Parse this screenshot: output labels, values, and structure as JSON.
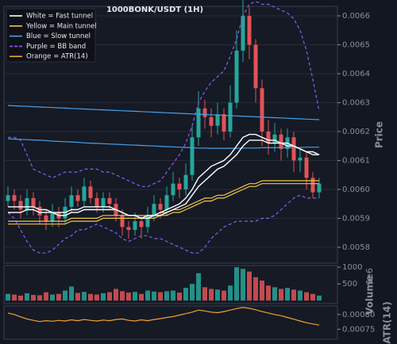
{
  "chart_data": [
    {
      "type": "candlestick",
      "title": "1000BONK/USDT (1H)",
      "ylabel": "Price",
      "up_color": "#26a69a",
      "down_color": "#e05358",
      "grid": true,
      "ylim": [
        0.005745,
        0.006633
      ],
      "yticks": [
        0.0058,
        0.0059,
        {
          "value": 0.006,
          "label": "0.0060"
        },
        0.0061,
        0.0062,
        0.0063,
        0.0064,
        0.0065,
        0.0066
      ],
      "open": [
        0.00596,
        0.00598,
        0.00596,
        0.00593,
        0.00597,
        0.00594,
        0.00591,
        0.00589,
        0.00592,
        0.0059,
        0.00594,
        0.00598,
        0.00596,
        0.00601,
        0.00597,
        0.00594,
        0.00597,
        0.00595,
        0.00591,
        0.00587,
        0.00586,
        0.00589,
        0.00587,
        0.00591,
        0.00595,
        0.00593,
        0.00598,
        0.00602,
        0.006,
        0.00605,
        0.00618,
        0.00628,
        0.00625,
        0.00622,
        0.00626,
        0.0062,
        0.0063,
        0.00648,
        0.0066,
        0.0065,
        0.00635,
        0.0062,
        0.00616,
        0.00619,
        0.00614,
        0.00618,
        0.0061,
        0.00611,
        0.00604,
        0.00599
      ],
      "high": [
        0.00601,
        0.006,
        0.00598,
        0.006,
        0.00599,
        0.00596,
        0.00593,
        0.00595,
        0.00594,
        0.00597,
        0.00601,
        0.006,
        0.00604,
        0.00603,
        0.00599,
        0.00599,
        0.00599,
        0.00597,
        0.00593,
        0.00589,
        0.00592,
        0.00591,
        0.00594,
        0.00598,
        0.00597,
        0.00601,
        0.00606,
        0.00604,
        0.00609,
        0.00622,
        0.00634,
        0.00631,
        0.00628,
        0.0063,
        0.00628,
        0.00636,
        0.00655,
        0.00666,
        0.00663,
        0.00652,
        0.00638,
        0.00624,
        0.00623,
        0.00621,
        0.00621,
        0.0062,
        0.00614,
        0.00613,
        0.00606,
        0.00604
      ],
      "low": [
        0.00594,
        0.00593,
        0.0059,
        0.00591,
        0.00591,
        0.00588,
        0.00586,
        0.00587,
        0.00587,
        0.00588,
        0.00592,
        0.00594,
        0.00594,
        0.00595,
        0.00592,
        0.00592,
        0.00593,
        0.00589,
        0.00584,
        0.00583,
        0.00584,
        0.00583,
        0.00585,
        0.00589,
        0.0059,
        0.00591,
        0.00596,
        0.00597,
        0.00598,
        0.00603,
        0.00615,
        0.00621,
        0.00618,
        0.00619,
        0.00617,
        0.00618,
        0.00628,
        0.00644,
        0.00645,
        0.0063,
        0.00615,
        0.00612,
        0.00613,
        0.0061,
        0.00611,
        0.00606,
        0.00606,
        0.006,
        0.00597,
        0.00597
      ],
      "close": [
        0.00598,
        0.00596,
        0.00593,
        0.00597,
        0.00594,
        0.00591,
        0.00589,
        0.00592,
        0.0059,
        0.00594,
        0.00598,
        0.00596,
        0.00601,
        0.00597,
        0.00594,
        0.00597,
        0.00595,
        0.00591,
        0.00587,
        0.00586,
        0.00589,
        0.00587,
        0.00591,
        0.00595,
        0.00593,
        0.00598,
        0.00602,
        0.006,
        0.00605,
        0.00618,
        0.00628,
        0.00625,
        0.00622,
        0.00626,
        0.0062,
        0.0063,
        0.00648,
        0.0066,
        0.0065,
        0.00635,
        0.0062,
        0.00616,
        0.00619,
        0.00614,
        0.00618,
        0.0061,
        0.00611,
        0.00604,
        0.00599,
        0.00602
      ],
      "lines": [
        {
          "color": "#4a9fe8",
          "dashed": false,
          "values": [
            0.00629,
            0.006289,
            0.006288,
            0.006287,
            0.006286,
            0.006285,
            0.006284,
            0.006283,
            0.006282,
            0.006281,
            0.00628,
            0.006279,
            0.006278,
            0.006277,
            0.006276,
            0.006275,
            0.006274,
            0.006273,
            0.006272,
            0.006271,
            0.00627,
            0.006269,
            0.006268,
            0.006267,
            0.006266,
            0.006265,
            0.006264,
            0.006263,
            0.006262,
            0.006261,
            0.00626,
            0.006259,
            0.006258,
            0.006257,
            0.006256,
            0.006255,
            0.006254,
            0.006253,
            0.006252,
            0.006251,
            0.00625,
            0.006249,
            0.006248,
            0.006247,
            0.006246,
            0.006245,
            0.006244,
            0.006243,
            0.006242,
            0.006241
          ]
        },
        {
          "color": "#4a9fe8",
          "dashed": false,
          "values": [
            0.006175,
            0.006174,
            0.006173,
            0.006172,
            0.006171,
            0.00617,
            0.006169,
            0.006167,
            0.006166,
            0.006165,
            0.006164,
            0.006163,
            0.006161,
            0.00616,
            0.006159,
            0.006158,
            0.006157,
            0.006156,
            0.006155,
            0.006154,
            0.006153,
            0.006152,
            0.006151,
            0.00615,
            0.006149,
            0.006148,
            0.006147,
            0.006146,
            0.006145,
            0.006144,
            0.006143,
            0.006143,
            0.006142,
            0.006142,
            0.006142,
            0.006142,
            0.006142,
            0.006143,
            0.006143,
            0.006143,
            0.006144,
            0.006144,
            0.006144,
            0.006145,
            0.006145,
            0.006145,
            0.006145,
            0.006146,
            0.006146,
            0.006146
          ]
        },
        {
          "color": "#8a5cf0",
          "dashed": true,
          "values": [
            0.00618,
            0.00618,
            0.00617,
            0.00612,
            0.00607,
            0.00606,
            0.00605,
            0.00604,
            0.00605,
            0.00606,
            0.00606,
            0.00606,
            0.00607,
            0.00607,
            0.00607,
            0.00606,
            0.00606,
            0.00605,
            0.00604,
            0.00603,
            0.00602,
            0.00601,
            0.00601,
            0.00602,
            0.00603,
            0.00606,
            0.00609,
            0.00612,
            0.00616,
            0.00622,
            0.0063,
            0.00634,
            0.00637,
            0.00639,
            0.00641,
            0.00646,
            0.00652,
            0.0066,
            0.00664,
            0.00665,
            0.00664,
            0.00664,
            0.00663,
            0.00662,
            0.00661,
            0.00659,
            0.00655,
            0.00648,
            0.00638,
            0.00627
          ]
        },
        {
          "color": "#8a5cf0",
          "dashed": true,
          "values": [
            0.00592,
            0.0059,
            0.00586,
            0.00582,
            0.00579,
            0.00578,
            0.00578,
            0.00579,
            0.00581,
            0.00583,
            0.00584,
            0.00586,
            0.00586,
            0.00587,
            0.00588,
            0.00587,
            0.00586,
            0.00585,
            0.00583,
            0.00582,
            0.00583,
            0.00584,
            0.00584,
            0.00583,
            0.00583,
            0.00582,
            0.00581,
            0.0058,
            0.00579,
            0.00578,
            0.00578,
            0.0058,
            0.00583,
            0.00585,
            0.00587,
            0.00588,
            0.00589,
            0.00589,
            0.00589,
            0.00589,
            0.0059,
            0.0059,
            0.00591,
            0.00593,
            0.00595,
            0.00597,
            0.00598,
            0.00597,
            0.00597,
            0.00597
          ]
        },
        {
          "color": "#f5c542",
          "dashed": false,
          "values": [
            0.00589,
            0.00589,
            0.00589,
            0.00589,
            0.00589,
            0.00589,
            0.00589,
            0.00589,
            0.00589,
            0.00589,
            0.0059,
            0.0059,
            0.0059,
            0.0059,
            0.0059,
            0.00591,
            0.00591,
            0.00591,
            0.00591,
            0.00591,
            0.00591,
            0.00591,
            0.00591,
            0.00591,
            0.00592,
            0.00592,
            0.00593,
            0.00593,
            0.00594,
            0.00595,
            0.00596,
            0.00597,
            0.00597,
            0.00598,
            0.00598,
            0.00599,
            0.006,
            0.00601,
            0.00602,
            0.00602,
            0.00603,
            0.00603,
            0.00603,
            0.00603,
            0.00603,
            0.00603,
            0.00603,
            0.00603,
            0.00603,
            0.00603
          ]
        },
        {
          "color": "#f5c542",
          "dashed": false,
          "values": [
            0.00588,
            0.00588,
            0.00588,
            0.00588,
            0.00588,
            0.00588,
            0.00588,
            0.00588,
            0.00588,
            0.00588,
            0.00589,
            0.00589,
            0.00589,
            0.00589,
            0.00589,
            0.0059,
            0.0059,
            0.0059,
            0.0059,
            0.0059,
            0.0059,
            0.0059,
            0.0059,
            0.0059,
            0.00591,
            0.00591,
            0.00592,
            0.00592,
            0.00593,
            0.00594,
            0.00595,
            0.00596,
            0.00596,
            0.00597,
            0.00597,
            0.00598,
            0.00599,
            0.006,
            0.00601,
            0.00601,
            0.00602,
            0.00602,
            0.00602,
            0.00602,
            0.00602,
            0.00602,
            0.00602,
            0.00602,
            0.00602,
            0.00602
          ]
        },
        {
          "color": "#ffffff",
          "dashed": false,
          "values": [
            0.00594,
            0.00594,
            0.00594,
            0.00594,
            0.00594,
            0.00593,
            0.00593,
            0.00592,
            0.00592,
            0.00592,
            0.00593,
            0.00593,
            0.00594,
            0.00594,
            0.00594,
            0.00594,
            0.00594,
            0.00593,
            0.00592,
            0.00591,
            0.00591,
            0.0059,
            0.00591,
            0.00591,
            0.00592,
            0.00593,
            0.00594,
            0.00595,
            0.00597,
            0.006,
            0.00604,
            0.00606,
            0.00608,
            0.00609,
            0.0061,
            0.00612,
            0.00615,
            0.00618,
            0.00619,
            0.00619,
            0.00618,
            0.00617,
            0.00617,
            0.00616,
            0.00616,
            0.00615,
            0.00614,
            0.00613,
            0.00612,
            0.00612
          ]
        },
        {
          "color": "#ffffff",
          "dashed": false,
          "values": [
            0.00592,
            0.00592,
            0.00592,
            0.00593,
            0.00593,
            0.00592,
            0.00592,
            0.00592,
            0.00591,
            0.00591,
            0.00592,
            0.00592,
            0.00593,
            0.00593,
            0.00593,
            0.00593,
            0.00593,
            0.00593,
            0.00592,
            0.00591,
            0.00591,
            0.0059,
            0.0059,
            0.00591,
            0.00591,
            0.00592,
            0.00593,
            0.00594,
            0.00595,
            0.00598,
            0.00601,
            0.00603,
            0.00605,
            0.00607,
            0.00608,
            0.0061,
            0.00612,
            0.00615,
            0.00617,
            0.00617,
            0.00617,
            0.00616,
            0.00616,
            0.00616,
            0.00615,
            0.00615,
            0.00614,
            0.00613,
            0.00613,
            0.00612
          ]
        }
      ],
      "legend": [
        {
          "label": "White = Fast tunnel",
          "color": "#ffffff",
          "dashed": false
        },
        {
          "label": "Yellow = Main tunnel",
          "color": "#f5c542",
          "dashed": false
        },
        {
          "label": "Blue = Slow tunnel",
          "color": "#4a9fe8",
          "dashed": false
        },
        {
          "label": "Purple = BB band",
          "color": "#8a5cf0",
          "dashed": true
        },
        {
          "label": "Orange = ATR(14)",
          "color": "#f5a030",
          "dashed": false
        }
      ]
    },
    {
      "type": "bar",
      "ylabel": "Volume",
      "offset_text": "1e6",
      "ylim": [
        -90,
        1050
      ],
      "yticks": [
        500,
        1000
      ],
      "values": [
        200,
        180,
        150,
        220,
        170,
        160,
        250,
        180,
        200,
        300,
        420,
        230,
        260,
        200,
        180,
        220,
        250,
        350,
        280,
        240,
        260,
        200,
        300,
        270,
        250,
        280,
        300,
        240,
        380,
        500,
        820,
        400,
        350,
        330,
        300,
        450,
        1000,
        950,
        870,
        700,
        600,
        450,
        400,
        350,
        380,
        330,
        300,
        250,
        200,
        150
      ]
    },
    {
      "type": "line",
      "ylabel": "ATR(14)",
      "color": "#f5a030",
      "ylim": [
        0.000716,
        0.000829
      ],
      "yticks": [
        0.00075,
        {
          "value": 0.0008,
          "label": "0.00080"
        }
      ],
      "values": [
        0.000805,
        0.0008,
        0.000792,
        0.000785,
        0.00078,
        0.000776,
        0.000779,
        0.000777,
        0.00078,
        0.000778,
        0.000782,
        0.000779,
        0.000783,
        0.00078,
        0.000778,
        0.000781,
        0.000779,
        0.000783,
        0.000785,
        0.00078,
        0.000778,
        0.000782,
        0.000779,
        0.000783,
        0.000786,
        0.00079,
        0.000793,
        0.000798,
        0.000803,
        0.000808,
        0.000815,
        0.000812,
        0.000808,
        0.000806,
        0.00081,
        0.000815,
        0.00082,
        0.000824,
        0.000821,
        0.000816,
        0.00081,
        0.000805,
        0.0008,
        0.000796,
        0.00079,
        0.000784,
        0.000778,
        0.000772,
        0.000768,
        0.000764
      ]
    }
  ]
}
